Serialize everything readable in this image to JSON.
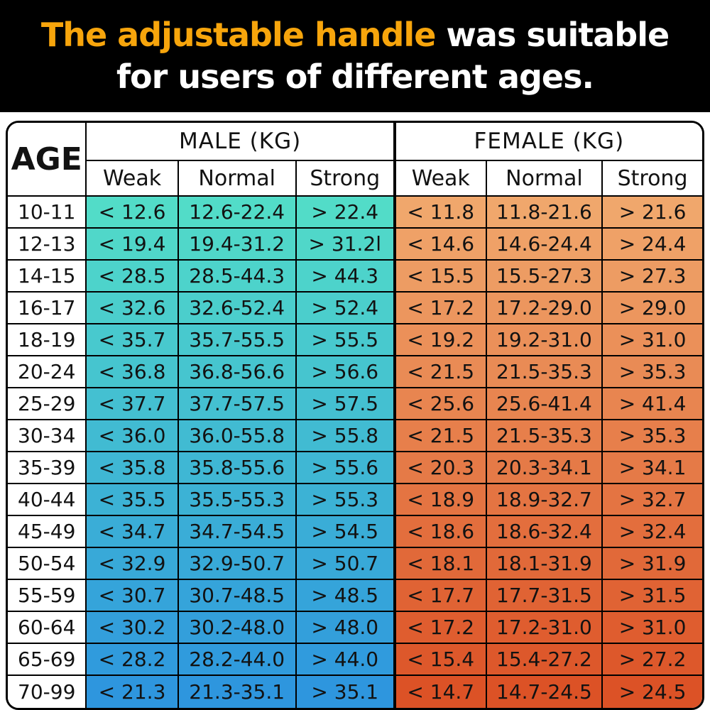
{
  "title": {
    "highlight": "The adjustable handle",
    "rest": " was suitable",
    "line2": "for users of different ages."
  },
  "colors": {
    "header_bg": "#000000",
    "title_highlight": "#F7A50C",
    "title_text": "#FFFFFF",
    "border": "#000000",
    "male_top": "#52DCC8",
    "male_bottom": "#2E96DE",
    "female_top": "#F0A76C",
    "female_bottom": "#DC5226"
  },
  "table": {
    "age_header": "AGE",
    "male_header": "MALE (KG)",
    "female_header": "FEMALE (KG)",
    "sub_headers": [
      "Weak",
      "Normal",
      "Strong"
    ]
  },
  "chart_data": {
    "type": "table",
    "title": "The adjustable handle was suitable for users of different ages.",
    "columns": [
      "AGE",
      "MALE Weak",
      "MALE Normal",
      "MALE Strong",
      "FEMALE Weak",
      "FEMALE Normal",
      "FEMALE Strong"
    ],
    "units": "KG",
    "rows": [
      [
        "10-11",
        "< 12.6",
        "12.6-22.4",
        "> 22.4",
        "< 11.8",
        "11.8-21.6",
        "> 21.6"
      ],
      [
        "12-13",
        "< 19.4",
        "19.4-31.2",
        "> 31.2l",
        "< 14.6",
        "14.6-24.4",
        "> 24.4"
      ],
      [
        "14-15",
        "< 28.5",
        "28.5-44.3",
        "> 44.3",
        "< 15.5",
        "15.5-27.3",
        "> 27.3"
      ],
      [
        "16-17",
        "< 32.6",
        "32.6-52.4",
        "> 52.4",
        "< 17.2",
        "17.2-29.0",
        "> 29.0"
      ],
      [
        "18-19",
        "< 35.7",
        "35.7-55.5",
        "> 55.5",
        "< 19.2",
        "19.2-31.0",
        "> 31.0"
      ],
      [
        "20-24",
        "< 36.8",
        "36.8-56.6",
        "> 56.6",
        "< 21.5",
        "21.5-35.3",
        "> 35.3"
      ],
      [
        "25-29",
        "< 37.7",
        "37.7-57.5",
        "> 57.5",
        "< 25.6",
        "25.6-41.4",
        "> 41.4"
      ],
      [
        "30-34",
        "< 36.0",
        "36.0-55.8",
        "> 55.8",
        "< 21.5",
        "21.5-35.3",
        "> 35.3"
      ],
      [
        "35-39",
        "< 35.8",
        "35.8-55.6",
        "> 55.6",
        "< 20.3",
        "20.3-34.1",
        "> 34.1"
      ],
      [
        "40-44",
        "< 35.5",
        "35.5-55.3",
        "> 55.3",
        "< 18.9",
        "18.9-32.7",
        "> 32.7"
      ],
      [
        "45-49",
        "< 34.7",
        "34.7-54.5",
        "> 54.5",
        "< 18.6",
        "18.6-32.4",
        "> 32.4"
      ],
      [
        "50-54",
        "< 32.9",
        "32.9-50.7",
        "> 50.7",
        "< 18.1",
        "18.1-31.9",
        "> 31.9"
      ],
      [
        "55-59",
        "< 30.7",
        "30.7-48.5",
        "> 48.5",
        "< 17.7",
        "17.7-31.5",
        "> 31.5"
      ],
      [
        "60-64",
        "< 30.2",
        "30.2-48.0",
        "> 48.0",
        "< 17.2",
        "17.2-31.0",
        "> 31.0"
      ],
      [
        "65-69",
        "< 28.2",
        "28.2-44.0",
        "> 44.0",
        "< 15.4",
        "15.4-27.2",
        "> 27.2"
      ],
      [
        "70-99",
        "< 21.3",
        "21.3-35.1",
        "> 35.1",
        "< 14.7",
        "14.7-24.5",
        "> 24.5"
      ]
    ]
  }
}
